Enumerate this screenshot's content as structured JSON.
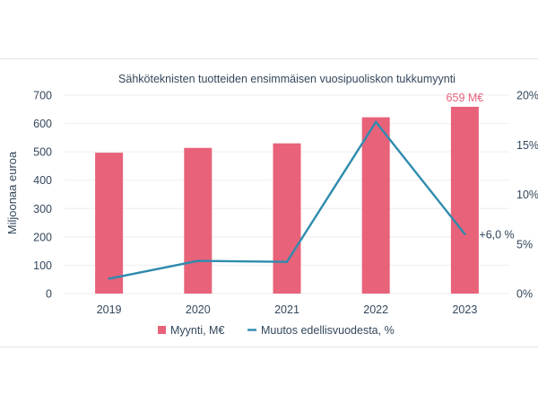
{
  "chart_data": {
    "type": "bar",
    "title": "Sähköteknisten tuotteiden ensimmäisen vuosipuoliskon tukkumyynti",
    "ylabel": "Miljoonaa euroa",
    "categories": [
      "2019",
      "2020",
      "2021",
      "2022",
      "2023"
    ],
    "ylim": [
      0,
      700
    ],
    "yticks": [
      "0",
      "100",
      "200",
      "300",
      "400",
      "500",
      "600",
      "700"
    ],
    "y2lim": [
      0,
      20
    ],
    "y2ticks": [
      "0%",
      "5%",
      "10%",
      "15%",
      "20%"
    ],
    "series": [
      {
        "name": "Myynti, M€",
        "type": "bar",
        "axis": "left",
        "values": [
          497,
          514,
          530,
          622,
          659
        ],
        "color": "#e8627a"
      },
      {
        "name": "Muutos edellisvuodesta, %",
        "type": "line",
        "axis": "right",
        "values": [
          1.5,
          3.3,
          3.2,
          17.3,
          6.0
        ],
        "color": "#2e8bad"
      }
    ],
    "annotations": [
      {
        "text": "659 M€",
        "category": "2023",
        "series": "Myynti, M€",
        "color": "#e8627a"
      },
      {
        "text": "+6,0 %",
        "category": "2023",
        "series": "Muutos edellisvuodesta, %",
        "color": "#33475b"
      }
    ],
    "legend": "bottom",
    "grid": true
  },
  "colors": {
    "axis_text": "#33475b",
    "grid": "#eeeeee"
  }
}
